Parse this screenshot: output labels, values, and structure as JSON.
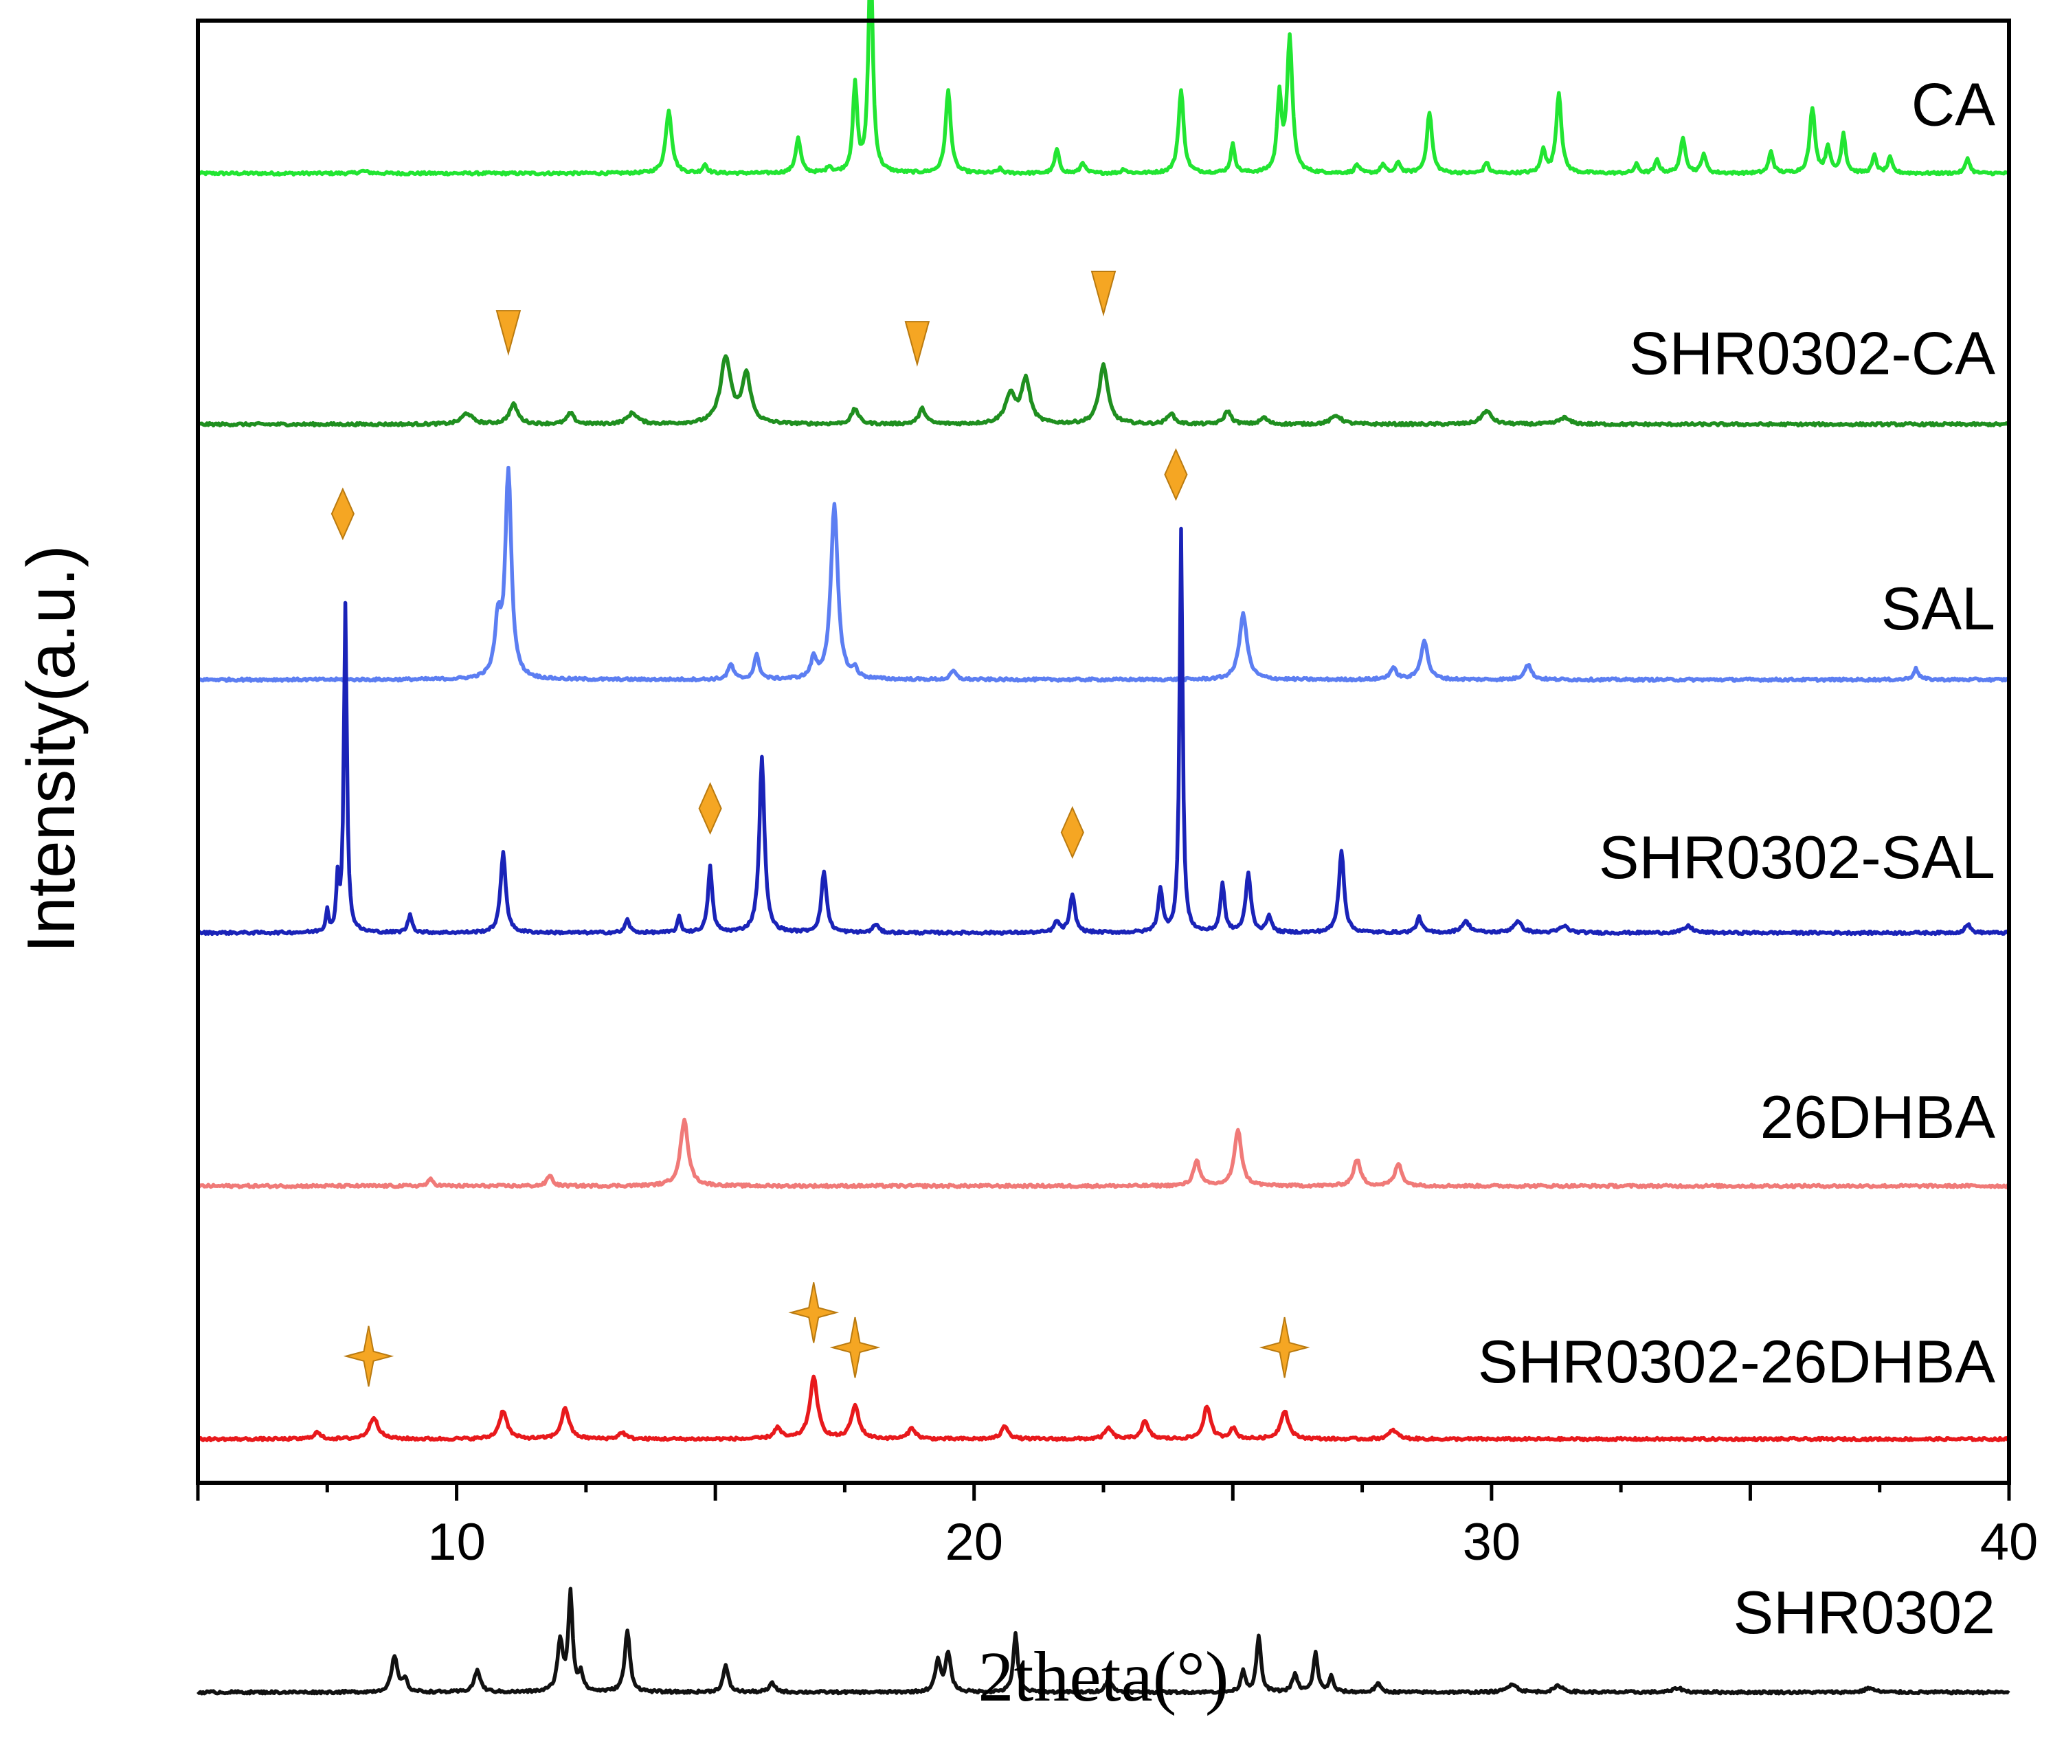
{
  "chart_data": {
    "type": "line",
    "title": "",
    "xlabel": "2theta(°)",
    "ylabel": "Intensity(a.u.)",
    "xlim": [
      5,
      40
    ],
    "ylim": [
      0,
      6.7
    ],
    "xticks": [
      10,
      20,
      30,
      40
    ],
    "xtick_labels": [
      "10",
      "20",
      "30",
      "40"
    ],
    "grid": false,
    "legend": "labels placed at right end of each trace",
    "marker_color": "#F5A623",
    "series": [
      {
        "name": "CA",
        "color": "#22E532",
        "baseline": 6.0,
        "peaks": [
          [
            8.2,
            0.01,
            0.1
          ],
          [
            14.1,
            0.29,
            0.07
          ],
          [
            14.8,
            0.04,
            0.05
          ],
          [
            16.6,
            0.16,
            0.06
          ],
          [
            17.2,
            0.03,
            0.05
          ],
          [
            17.7,
            0.4,
            0.05
          ],
          [
            18.0,
            1.0,
            0.05
          ],
          [
            19.5,
            0.38,
            0.06
          ],
          [
            20.5,
            0.02,
            0.05
          ],
          [
            21.6,
            0.11,
            0.05
          ],
          [
            22.1,
            0.05,
            0.05
          ],
          [
            22.9,
            0.02,
            0.05
          ],
          [
            24.0,
            0.38,
            0.06
          ],
          [
            25.0,
            0.13,
            0.05
          ],
          [
            25.9,
            0.35,
            0.05
          ],
          [
            26.1,
            0.62,
            0.06
          ],
          [
            27.4,
            0.04,
            0.05
          ],
          [
            27.9,
            0.04,
            0.05
          ],
          [
            28.2,
            0.05,
            0.05
          ],
          [
            28.8,
            0.28,
            0.06
          ],
          [
            29.9,
            0.05,
            0.05
          ],
          [
            31.0,
            0.11,
            0.05
          ],
          [
            31.3,
            0.37,
            0.06
          ],
          [
            32.8,
            0.04,
            0.05
          ],
          [
            33.2,
            0.06,
            0.05
          ],
          [
            33.7,
            0.16,
            0.06
          ],
          [
            34.1,
            0.09,
            0.05
          ],
          [
            35.4,
            0.1,
            0.05
          ],
          [
            36.2,
            0.3,
            0.06
          ],
          [
            36.5,
            0.12,
            0.05
          ],
          [
            36.8,
            0.18,
            0.05
          ],
          [
            37.4,
            0.08,
            0.05
          ],
          [
            37.7,
            0.07,
            0.05
          ],
          [
            39.2,
            0.07,
            0.05
          ]
        ],
        "markers": []
      },
      {
        "name": "SHR0302-CA",
        "color": "#1F8F1F",
        "baseline": 4.85,
        "peaks": [
          [
            10.2,
            0.05,
            0.12
          ],
          [
            11.1,
            0.09,
            0.1
          ],
          [
            12.2,
            0.05,
            0.08
          ],
          [
            13.4,
            0.05,
            0.12
          ],
          [
            15.2,
            0.3,
            0.12
          ],
          [
            15.6,
            0.22,
            0.1
          ],
          [
            17.7,
            0.07,
            0.08
          ],
          [
            19.0,
            0.07,
            0.08
          ],
          [
            20.7,
            0.13,
            0.12
          ],
          [
            21.0,
            0.2,
            0.1
          ],
          [
            22.5,
            0.27,
            0.1
          ],
          [
            23.8,
            0.05,
            0.08
          ],
          [
            24.9,
            0.06,
            0.08
          ],
          [
            25.6,
            0.03,
            0.08
          ],
          [
            27.0,
            0.04,
            0.12
          ],
          [
            29.9,
            0.06,
            0.12
          ],
          [
            31.4,
            0.03,
            0.12
          ]
        ],
        "markers": [
          {
            "shape": "triangle-down",
            "x": [
              11.0,
              18.9,
              22.5
            ],
            "y_offset": [
              0.42,
              0.37,
              0.6
            ]
          }
        ]
      },
      {
        "name": "SAL",
        "color": "#5C7EF2",
        "baseline": 3.68,
        "peaks": [
          [
            10.8,
            0.25,
            0.07
          ],
          [
            11.0,
            0.95,
            0.07
          ],
          [
            15.3,
            0.07,
            0.06
          ],
          [
            15.8,
            0.11,
            0.06
          ],
          [
            16.9,
            0.09,
            0.06
          ],
          [
            17.3,
            0.8,
            0.08
          ],
          [
            17.7,
            0.04,
            0.05
          ],
          [
            19.6,
            0.04,
            0.06
          ],
          [
            25.2,
            0.3,
            0.09
          ],
          [
            28.1,
            0.05,
            0.08
          ],
          [
            28.7,
            0.18,
            0.08
          ],
          [
            30.7,
            0.07,
            0.08
          ],
          [
            38.2,
            0.05,
            0.06
          ]
        ],
        "markers": []
      },
      {
        "name": "SHR0302-SAL",
        "color": "#1A23B8",
        "baseline": 2.52,
        "peaks": [
          [
            7.5,
            0.1,
            0.03
          ],
          [
            7.7,
            0.22,
            0.03
          ],
          [
            7.85,
            1.5,
            0.035
          ],
          [
            9.1,
            0.08,
            0.05
          ],
          [
            10.9,
            0.37,
            0.06
          ],
          [
            13.3,
            0.06,
            0.05
          ],
          [
            14.3,
            0.07,
            0.04
          ],
          [
            14.9,
            0.3,
            0.05
          ],
          [
            15.9,
            0.8,
            0.06
          ],
          [
            17.1,
            0.28,
            0.06
          ],
          [
            18.1,
            0.04,
            0.06
          ],
          [
            21.6,
            0.05,
            0.06
          ],
          [
            21.9,
            0.17,
            0.06
          ],
          [
            23.6,
            0.2,
            0.05
          ],
          [
            24.0,
            1.85,
            0.035
          ],
          [
            24.8,
            0.22,
            0.05
          ],
          [
            25.3,
            0.27,
            0.06
          ],
          [
            25.7,
            0.08,
            0.05
          ],
          [
            27.1,
            0.38,
            0.06
          ],
          [
            28.6,
            0.07,
            0.06
          ],
          [
            29.5,
            0.05,
            0.1
          ],
          [
            30.5,
            0.05,
            0.1
          ],
          [
            31.4,
            0.03,
            0.1
          ],
          [
            33.8,
            0.03,
            0.1
          ],
          [
            39.2,
            0.04,
            0.06
          ]
        ],
        "markers": [
          {
            "shape": "diamond",
            "x": [
              7.8,
              14.9,
              21.9,
              23.9
            ],
            "y_offset": [
              1.92,
              0.57,
              0.46,
              2.1
            ]
          }
        ]
      },
      {
        "name": "26DHBA",
        "color": "#F07A78",
        "baseline": 1.36,
        "peaks": [
          [
            9.5,
            0.03,
            0.06
          ],
          [
            11.8,
            0.05,
            0.06
          ],
          [
            14.4,
            0.3,
            0.09
          ],
          [
            24.3,
            0.12,
            0.07
          ],
          [
            25.1,
            0.26,
            0.08
          ],
          [
            27.4,
            0.12,
            0.08
          ],
          [
            28.2,
            0.1,
            0.08
          ]
        ],
        "markers": []
      },
      {
        "name": "SHR0302-26DHBA",
        "color": "#E8191C",
        "baseline": 0.2,
        "peaks": [
          [
            7.3,
            0.03,
            0.08
          ],
          [
            8.4,
            0.1,
            0.1
          ],
          [
            10.9,
            0.13,
            0.09
          ],
          [
            12.1,
            0.14,
            0.09
          ],
          [
            13.2,
            0.03,
            0.08
          ],
          [
            16.2,
            0.05,
            0.08
          ],
          [
            16.9,
            0.28,
            0.09
          ],
          [
            17.7,
            0.15,
            0.09
          ],
          [
            18.8,
            0.05,
            0.08
          ],
          [
            20.6,
            0.06,
            0.08
          ],
          [
            22.6,
            0.05,
            0.08
          ],
          [
            23.3,
            0.08,
            0.08
          ],
          [
            24.5,
            0.15,
            0.08
          ],
          [
            25.0,
            0.05,
            0.07
          ],
          [
            26.0,
            0.13,
            0.09
          ],
          [
            28.1,
            0.04,
            0.1
          ]
        ],
        "markers": [
          {
            "shape": "star",
            "x": [
              8.3,
              16.9,
              17.7,
              26.0
            ],
            "y_offset": [
              0.38,
              0.58,
              0.42,
              0.42
            ]
          }
        ]
      },
      {
        "name": "SHR0302",
        "color": "#111111",
        "baseline": -0.96,
        "peaks": [
          [
            8.8,
            0.16,
            0.07
          ],
          [
            9.0,
            0.06,
            0.05
          ],
          [
            10.4,
            0.1,
            0.07
          ],
          [
            12.0,
            0.23,
            0.06
          ],
          [
            12.2,
            0.45,
            0.05
          ],
          [
            12.4,
            0.08,
            0.05
          ],
          [
            13.3,
            0.28,
            0.06
          ],
          [
            15.2,
            0.12,
            0.06
          ],
          [
            16.1,
            0.04,
            0.07
          ],
          [
            19.3,
            0.14,
            0.06
          ],
          [
            19.5,
            0.18,
            0.06
          ],
          [
            20.8,
            0.27,
            0.05
          ],
          [
            22.6,
            0.06,
            0.07
          ],
          [
            25.2,
            0.1,
            0.05
          ],
          [
            25.5,
            0.26,
            0.05
          ],
          [
            26.2,
            0.08,
            0.06
          ],
          [
            26.6,
            0.18,
            0.05
          ],
          [
            26.9,
            0.07,
            0.05
          ],
          [
            27.8,
            0.04,
            0.06
          ],
          [
            30.4,
            0.04,
            0.1
          ],
          [
            31.3,
            0.03,
            0.1
          ],
          [
            33.6,
            0.02,
            0.1
          ],
          [
            37.3,
            0.02,
            0.1
          ]
        ],
        "markers": []
      }
    ]
  }
}
